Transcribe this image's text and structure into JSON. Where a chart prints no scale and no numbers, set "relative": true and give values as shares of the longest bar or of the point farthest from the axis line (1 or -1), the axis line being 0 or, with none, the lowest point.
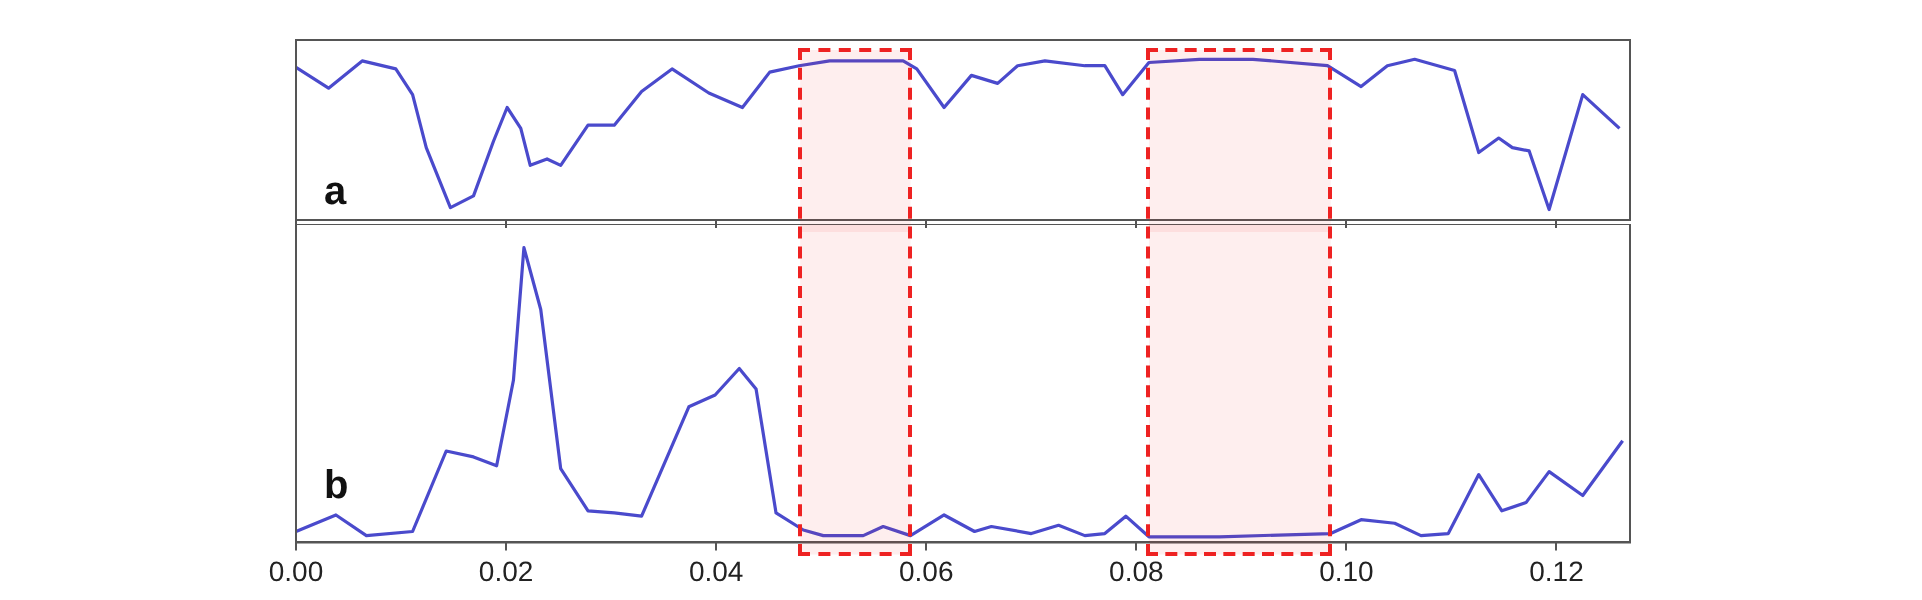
{
  "chart_data": [
    {
      "type": "line",
      "relative": true,
      "annotations": [
        "a"
      ],
      "xlim": [
        0,
        0.127
      ],
      "xticks": [
        {
          "value": 0,
          "label": null
        },
        {
          "value": 0.02,
          "label": null
        },
        {
          "value": 0.04,
          "label": null
        },
        {
          "value": 0.06,
          "label": null
        },
        {
          "value": 0.08,
          "label": null
        },
        {
          "value": 0.1,
          "label": null
        },
        {
          "value": 0.12,
          "label": null
        }
      ],
      "tick_labels": false,
      "grid": false,
      "legend": false,
      "marker": "none",
      "line_style": "solid",
      "bands": [
        {
          "axis": "x",
          "from": 0.048,
          "to": 0.0585,
          "color": "#ee2222"
        },
        {
          "axis": "x",
          "from": 0.0812,
          "to": 0.0985,
          "color": "#ee2222"
        }
      ],
      "series": [
        {
          "color": "#4a4acc",
          "x": [
            0,
            0.0031,
            0.0063,
            0.0095,
            0.0111,
            0.0124,
            0.0147,
            0.0169,
            0.0188,
            0.0201,
            0.0214,
            0.0223,
            0.0239,
            0.0252,
            0.0278,
            0.0303,
            0.0329,
            0.0358,
            0.0393,
            0.0425,
            0.0451,
            0.0479,
            0.0508,
            0.054,
            0.0578,
            0.0591,
            0.0617,
            0.0643,
            0.0668,
            0.0687,
            0.0713,
            0.0751,
            0.077,
            0.0787,
            0.0812,
            0.086,
            0.0911,
            0.0982,
            0.1014,
            0.1039,
            0.1065,
            0.1103,
            0.1126,
            0.1145,
            0.1158,
            0.1174,
            0.1193,
            0.1225,
            0.126
          ],
          "values": [
            0.95,
            0.82,
            0.99,
            0.94,
            0.78,
            0.45,
            0.077,
            0.15,
            0.49,
            0.7,
            0.57,
            0.34,
            0.38,
            0.34,
            0.59,
            0.59,
            0.8,
            0.94,
            0.79,
            0.7,
            0.92,
            0.96,
            0.99,
            0.99,
            0.99,
            0.94,
            0.7,
            0.9,
            0.85,
            0.96,
            0.99,
            0.96,
            0.96,
            0.78,
            0.98,
            1,
            1,
            0.96,
            0.83,
            0.96,
            1,
            0.93,
            0.42,
            0.51,
            0.45,
            0.43,
            0.065,
            0.78,
            0.57
          ]
        }
      ]
    },
    {
      "type": "line",
      "relative": true,
      "annotations": [
        "b"
      ],
      "xlim": [
        0,
        0.127
      ],
      "xticks": [
        {
          "value": 0,
          "label": "0.00"
        },
        {
          "value": 0.02,
          "label": "0.02"
        },
        {
          "value": 0.04,
          "label": "0.04"
        },
        {
          "value": 0.06,
          "label": "0.06"
        },
        {
          "value": 0.08,
          "label": "0.08"
        },
        {
          "value": 0.1,
          "label": "0.10"
        },
        {
          "value": 0.12,
          "label": "0.12"
        }
      ],
      "tick_labels": "x",
      "grid": false,
      "legend": false,
      "marker": "none",
      "line_style": "solid",
      "bands": [
        {
          "axis": "x",
          "from": 0.048,
          "to": 0.0585,
          "color": "#ee2222"
        },
        {
          "axis": "x",
          "from": 0.0812,
          "to": 0.0985,
          "color": "#ee2222"
        }
      ],
      "series": [
        {
          "color": "#4a4acc",
          "x": [
            0,
            0.0038,
            0.0067,
            0.0111,
            0.0143,
            0.0169,
            0.0191,
            0.0207,
            0.0217,
            0.0233,
            0.0252,
            0.0278,
            0.0303,
            0.0329,
            0.0374,
            0.0399,
            0.0422,
            0.0438,
            0.0457,
            0.0483,
            0.0502,
            0.054,
            0.0559,
            0.0585,
            0.0617,
            0.0646,
            0.0662,
            0.07,
            0.0726,
            0.0751,
            0.077,
            0.079,
            0.0812,
            0.0879,
            0.0985,
            0.1014,
            0.1046,
            0.1071,
            0.1097,
            0.1126,
            0.1148,
            0.1171,
            0.1193,
            0.1225,
            0.1263
          ],
          "values": [
            0.037,
            0.093,
            0.023,
            0.037,
            0.31,
            0.29,
            0.26,
            0.55,
            1,
            0.79,
            0.25,
            0.107,
            0.1,
            0.089,
            0.46,
            0.5,
            0.59,
            0.52,
            0.1,
            0.042,
            0.023,
            0.023,
            0.054,
            0.023,
            0.093,
            0.037,
            0.054,
            0.03,
            0.058,
            0.023,
            0.03,
            0.089,
            0.019,
            0.019,
            0.03,
            0.077,
            0.065,
            0.023,
            0.03,
            0.23,
            0.107,
            0.135,
            0.24,
            0.159,
            0.345
          ]
        }
      ]
    }
  ]
}
